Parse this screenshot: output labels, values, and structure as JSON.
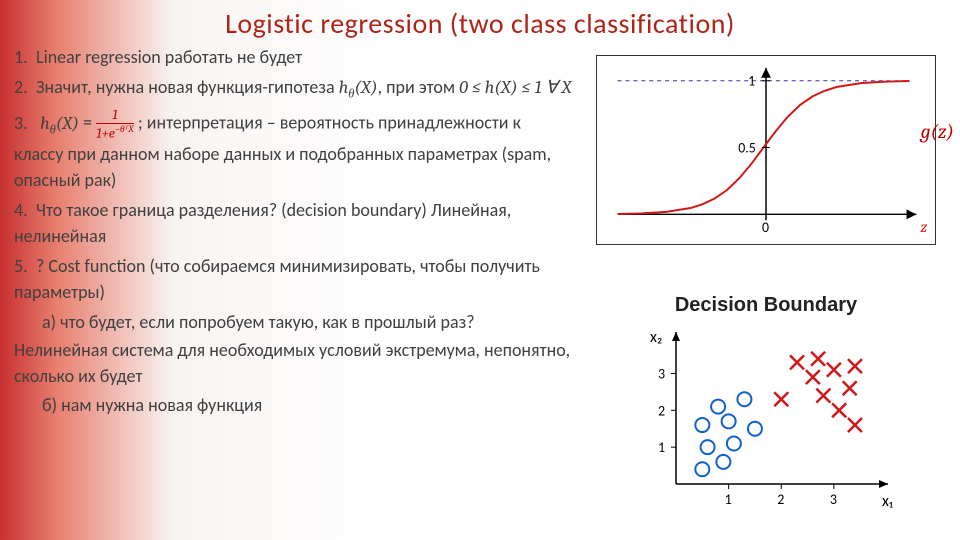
{
  "title": "Logistic regression (two class classification)",
  "items": {
    "n1": "1.",
    "t1": "Linear regression работать не будет",
    "n2": "2.",
    "t2a": "Значит, нужна новая функция-гипотеза ",
    "t2b": ", при этом ",
    "t2c": "0 ≤ h(X) ≤ 1 ∀ X",
    "n3": "3.",
    "t3a": " = ",
    "t3b": " ; интерпретация – вероятность принадлежности к классу при данном наборе данных и подобранных параметрах (spam, опасный рак)",
    "frac_top": "1",
    "frac_bot_a": "1+e",
    "frac_bot_exp": "−θᵀX",
    "h_theta": "h",
    "theta_sub": "θ",
    "X_arg": "(X)",
    "n4": "4.",
    "t4": "Что такое граница разделения? (decision boundary) Линейная, нелинейная",
    "n5": "5.",
    "t5": "? Cost function (что собираемся минимизировать, чтобы получить параметры)",
    "sa_lbl": "а)",
    "sa": " что будет, если попробуем такую, как в прошлый раз?",
    "p1": "Нелинейная система для необходимых условий экстремума, непонятно, сколько их будет",
    "sb_lbl": "б)",
    "sb": " нам нужна новая функция"
  },
  "sigmoid": {
    "type": "line",
    "curve_color": "#d01818",
    "axis_color": "#000000",
    "asymptote_color": "#3030c0",
    "asymptote_dash": "4 4",
    "line_width": 2,
    "y_ticks": [
      "0.5",
      "1"
    ],
    "x_origin_label": "0",
    "gz_label": "g(z)",
    "z_label": "z",
    "xlim": [
      -6,
      6
    ],
    "ylim": [
      0,
      1.15
    ],
    "points": [
      [
        -6,
        0.0025
      ],
      [
        -5,
        0.0067
      ],
      [
        -4,
        0.018
      ],
      [
        -3,
        0.047
      ],
      [
        -2.5,
        0.076
      ],
      [
        -2,
        0.119
      ],
      [
        -1.5,
        0.182
      ],
      [
        -1,
        0.269
      ],
      [
        -0.5,
        0.378
      ],
      [
        0,
        0.5
      ],
      [
        0.5,
        0.622
      ],
      [
        1,
        0.731
      ],
      [
        1.5,
        0.818
      ],
      [
        2,
        0.881
      ],
      [
        2.5,
        0.924
      ],
      [
        3,
        0.953
      ],
      [
        4,
        0.982
      ],
      [
        5,
        0.993
      ],
      [
        6,
        0.998
      ]
    ]
  },
  "decision_boundary": {
    "title": "Decision Boundary",
    "type": "scatter",
    "axis_color": "#000000",
    "x_label": "x₁",
    "y_label": "x₂",
    "tick_labels": [
      "1",
      "2",
      "3"
    ],
    "xlim": [
      0,
      3.8
    ],
    "ylim": [
      0,
      3.8
    ],
    "circle_color": "#1060d0",
    "cross_color": "#d01818",
    "marker_size": 7,
    "stroke_width": 2,
    "circles": [
      [
        0.5,
        0.4
      ],
      [
        0.9,
        0.6
      ],
      [
        0.6,
        1.0
      ],
      [
        1.1,
        1.1
      ],
      [
        0.5,
        1.6
      ],
      [
        1.0,
        1.7
      ],
      [
        1.5,
        1.5
      ],
      [
        0.8,
        2.1
      ],
      [
        1.3,
        2.3
      ]
    ],
    "crosses": [
      [
        2.0,
        2.3
      ],
      [
        2.3,
        3.3
      ],
      [
        2.6,
        2.9
      ],
      [
        2.7,
        3.4
      ],
      [
        2.8,
        2.4
      ],
      [
        3.0,
        3.1
      ],
      [
        3.1,
        2.0
      ],
      [
        3.3,
        2.6
      ],
      [
        3.4,
        1.6
      ],
      [
        3.4,
        3.2
      ]
    ]
  }
}
